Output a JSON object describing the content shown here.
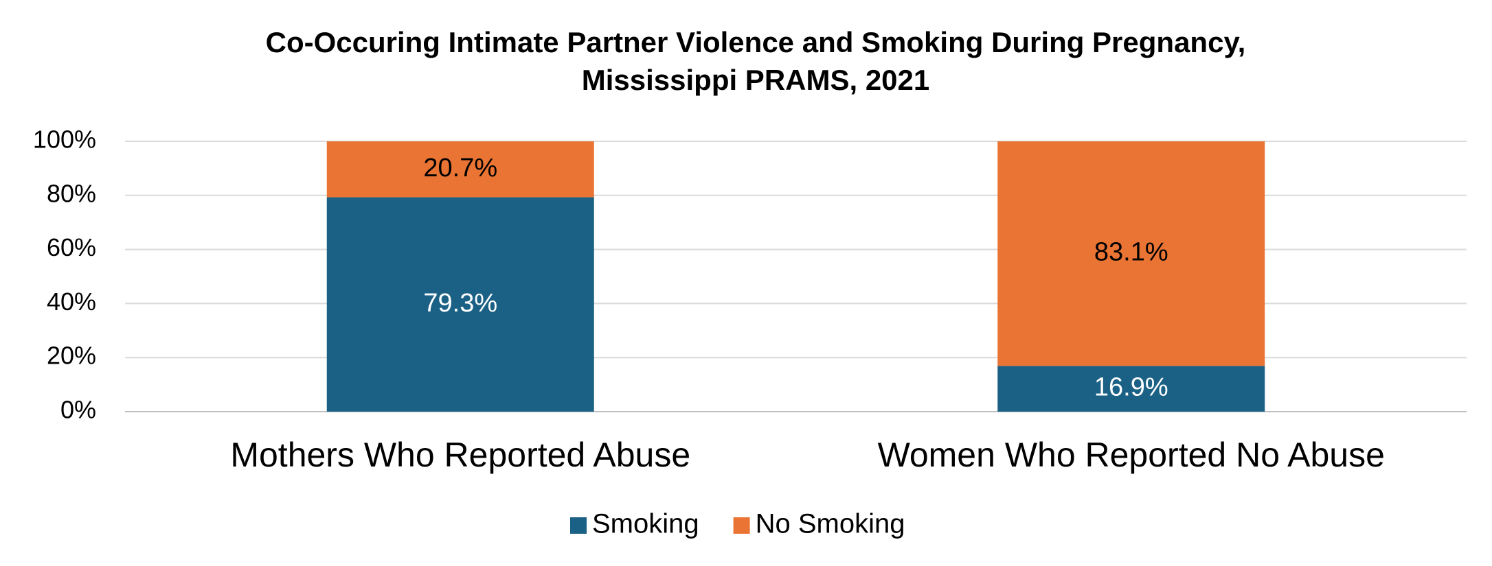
{
  "chart_data": {
    "type": "stacked_bar",
    "title": [
      "Co-Occuring Intimate Partner Violence and Smoking During Pregnancy,",
      "Mississippi PRAMS, 2021"
    ],
    "categories": [
      "Mothers Who Reported Abuse",
      "Women Who Reported No Abuse"
    ],
    "series": [
      {
        "name": "Smoking",
        "color": "#1b6185",
        "values": [
          79.3,
          16.9
        ],
        "value_labels": [
          "79.3%",
          "16.9%"
        ]
      },
      {
        "name": "No Smoking",
        "color": "#e97434",
        "values": [
          20.7,
          83.1
        ],
        "value_labels": [
          "20.7%",
          "83.1%"
        ]
      }
    ],
    "ylim": [
      0,
      100
    ],
    "yticks": [
      {
        "value": 0,
        "label": "0%"
      },
      {
        "value": 20,
        "label": "20%"
      },
      {
        "value": 40,
        "label": "40%"
      },
      {
        "value": 60,
        "label": "60%"
      },
      {
        "value": 80,
        "label": "80%"
      },
      {
        "value": 100,
        "label": "100%"
      }
    ],
    "grid": true,
    "legend": "bottom"
  }
}
